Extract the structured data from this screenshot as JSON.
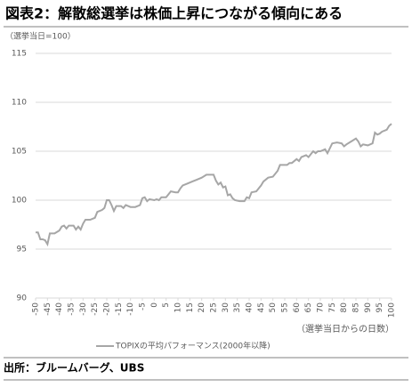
{
  "chart_data": {
    "type": "line",
    "title": "図表2：解散総選挙は株価上昇につながる傾向にある",
    "y_label": "（選挙当日=100）",
    "x_label": "（選挙当日からの日数）",
    "source": "出所：ブルームバーグ、UBS",
    "xlim": [
      -50,
      100
    ],
    "xticks": [
      -50,
      -45,
      -40,
      -35,
      -30,
      -25,
      -20,
      -15,
      -10,
      -5,
      0,
      5,
      10,
      15,
      20,
      25,
      30,
      35,
      40,
      45,
      50,
      55,
      60,
      65,
      70,
      75,
      80,
      85,
      90,
      95,
      100
    ],
    "ylim": [
      90,
      115
    ],
    "yticks": [
      90,
      95,
      100,
      105,
      110,
      115
    ],
    "grid": true,
    "legend": "bottom",
    "series": [
      {
        "name": "TOPIXの平均パフォーマンス(2000年以降)",
        "color": "#a6a6a6",
        "x": [
          -50,
          -49,
          -48,
          -47,
          -46,
          -45,
          -44,
          -42,
          -40,
          -39,
          -38,
          -37,
          -36,
          -34,
          -33,
          -32,
          -31,
          -30,
          -29,
          -27,
          -25,
          -24,
          -22,
          -21,
          -20,
          -19,
          -18,
          -17,
          -16,
          -14,
          -13,
          -12,
          -10,
          -8,
          -6,
          -5,
          -4,
          -3,
          -2,
          0,
          1,
          2,
          3,
          5,
          7,
          9,
          10,
          11,
          12,
          14,
          16,
          18,
          20,
          22,
          25,
          26,
          27,
          28,
          29,
          30,
          31,
          32,
          33,
          34,
          36,
          38,
          39,
          40,
          41,
          43,
          45,
          46,
          48,
          50,
          52,
          53,
          55,
          56,
          57,
          58,
          60,
          61,
          62,
          64,
          65,
          66,
          67,
          68,
          69,
          70,
          72,
          73,
          75,
          77,
          79,
          80,
          81,
          83,
          85,
          86,
          87,
          88,
          90,
          92,
          93,
          94,
          95,
          96,
          98,
          99,
          100
        ],
        "values": [
          96.7,
          96.7,
          96.0,
          96.0,
          95.9,
          95.5,
          96.6,
          96.6,
          96.9,
          97.3,
          97.4,
          97.1,
          97.4,
          97.4,
          97.0,
          97.3,
          97.0,
          97.6,
          98.0,
          98.0,
          98.2,
          98.8,
          99.0,
          99.2,
          100.0,
          100.0,
          99.5,
          98.9,
          99.4,
          99.4,
          99.2,
          99.5,
          99.3,
          99.3,
          99.5,
          100.2,
          100.3,
          99.9,
          100.1,
          100.0,
          100.1,
          100.0,
          100.3,
          100.3,
          100.9,
          100.8,
          100.8,
          101.2,
          101.5,
          101.7,
          101.9,
          102.1,
          102.3,
          102.6,
          102.6,
          102.0,
          101.6,
          101.8,
          101.3,
          101.4,
          100.5,
          100.6,
          100.2,
          100.0,
          99.9,
          99.9,
          100.3,
          100.2,
          100.8,
          100.9,
          101.5,
          101.9,
          102.3,
          102.4,
          103.0,
          103.6,
          103.6,
          103.6,
          103.8,
          103.8,
          104.2,
          104.0,
          104.4,
          104.6,
          104.4,
          104.7,
          105.0,
          104.8,
          105.0,
          105.0,
          105.2,
          104.8,
          105.8,
          105.9,
          105.8,
          105.5,
          105.7,
          106.0,
          106.3,
          106.0,
          105.5,
          105.7,
          105.6,
          105.8,
          106.9,
          106.7,
          106.8,
          107.0,
          107.2,
          107.6,
          107.8
        ]
      }
    ]
  }
}
